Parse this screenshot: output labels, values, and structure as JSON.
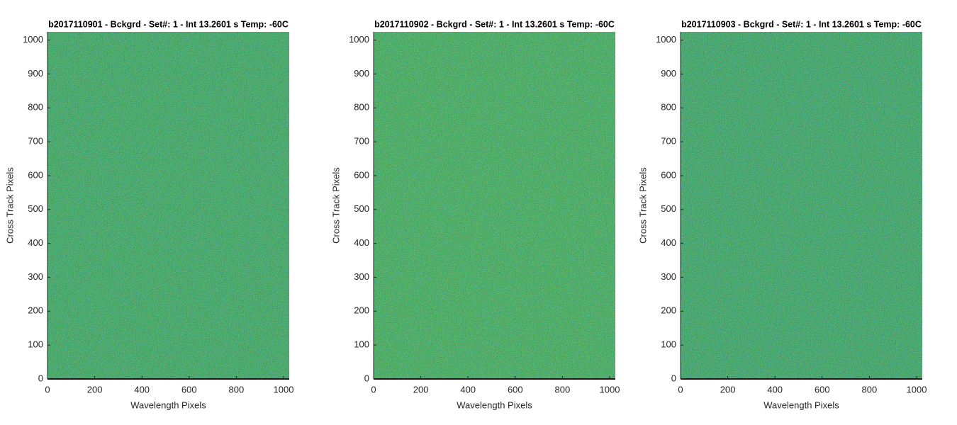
{
  "chart_data": [
    {
      "type": "heatmap",
      "title": "b2017110901 - Bckgrd - Set#: 1 - Int 13.2601 s Temp: -60C",
      "xlabel": "Wavelength Pixels",
      "ylabel": "Cross Track Pixels",
      "xlim": [
        0,
        1024
      ],
      "ylim": [
        0,
        1024
      ],
      "xticks": [
        0,
        200,
        400,
        600,
        800,
        1000
      ],
      "yticks": [
        0,
        100,
        200,
        300,
        400,
        500,
        600,
        700,
        800,
        900,
        1000
      ],
      "color": "#1fa3b1"
    },
    {
      "type": "heatmap",
      "title": "b2017110902 - Bckgrd - Set#: 1 - Int 13.2601 s Temp: -60C",
      "xlabel": "Wavelength Pixels",
      "ylabel": "Cross Track Pixels",
      "xlim": [
        0,
        1024
      ],
      "ylim": [
        0,
        1024
      ],
      "xticks": [
        0,
        200,
        400,
        600,
        800,
        1000
      ],
      "yticks": [
        0,
        100,
        200,
        300,
        400,
        500,
        600,
        700,
        800,
        900,
        1000
      ],
      "color": "#27aaa9"
    },
    {
      "type": "heatmap",
      "title": "b2017110903 - Bckgrd - Set#: 1 - Int 13.2601 s Temp: -60C",
      "xlabel": "Wavelength Pixels",
      "ylabel": "Cross Track Pixels",
      "xlim": [
        0,
        1024
      ],
      "ylim": [
        0,
        1024
      ],
      "xticks": [
        0,
        200,
        400,
        600,
        800,
        1000
      ],
      "yticks": [
        0,
        100,
        200,
        300,
        400,
        500,
        600,
        700,
        800,
        900,
        1000
      ],
      "color": "#1da0b5"
    }
  ]
}
